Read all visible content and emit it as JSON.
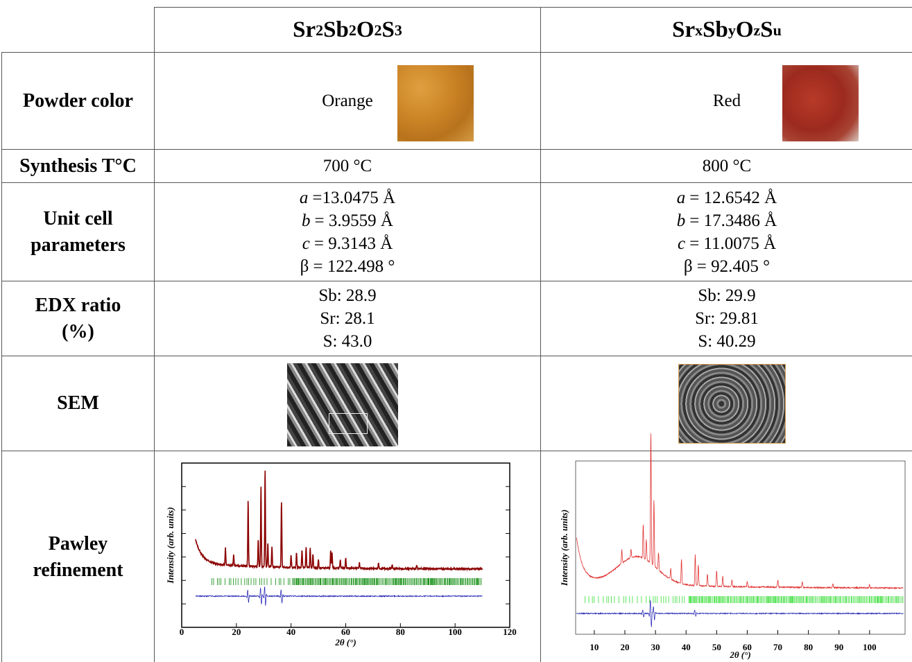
{
  "table": {
    "header": [
      [
        {
          "el": "Sr",
          "sub": "2"
        },
        {
          "el": "Sb",
          "sub": "2"
        },
        {
          "el": "O",
          "sub": "2"
        },
        {
          "el": "S",
          "sub": "3"
        }
      ],
      [
        {
          "el": "Sr",
          "sub": "x"
        },
        {
          "el": "Sb",
          "sub": "y"
        },
        {
          "el": "O",
          "sub": "z"
        },
        {
          "el": "S",
          "sub": "u"
        }
      ]
    ],
    "rows": [
      {
        "label": [
          "Powder color"
        ],
        "cells": [
          {
            "lines": [
              "Orange"
            ]
          },
          {
            "lines": [
              "Red"
            ]
          }
        ]
      },
      {
        "label": [
          "Synthesis T°C"
        ],
        "cells": [
          {
            "lines": [
              "700 °C"
            ]
          },
          {
            "lines": [
              "800 °C"
            ]
          }
        ]
      },
      {
        "label": [
          "Unit cell",
          "parameters"
        ],
        "cells": [
          {
            "lines": [
              {
                "symbol": "a",
                "text": "=13.0475 Å"
              },
              {
                "symbol": "b",
                "text": "= 3.9559 Å"
              },
              {
                "symbol": "c",
                "text": "= 9.3143 Å"
              },
              "β = 122.498 °"
            ]
          },
          {
            "lines": [
              {
                "symbol": "a",
                "text": "= 12.6542 Å"
              },
              {
                "symbol": "b",
                "text": "= 17.3486 Å"
              },
              {
                "symbol": "c",
                "text": "= 11.0075 Å"
              },
              "β = 92.405 °"
            ]
          }
        ]
      },
      {
        "label": [
          "EDX ratio",
          "(%)"
        ],
        "cells": [
          {
            "lines": [
              "Sb: 28.9",
              "Sr: 28.1",
              "S: 43.0"
            ]
          },
          {
            "lines": [
              "Sb: 29.9",
              "Sr: 29.81",
              "S: 40.29"
            ]
          }
        ]
      },
      {
        "label": [
          "SEM"
        ]
      },
      {
        "label": [
          "Pawley",
          "refinement"
        ],
        "cells": [
          {
            "plot": {
              "y_label": "Intensity (arb. units)",
              "x_label": "2θ (°)",
              "xlim": [
                0,
                120
              ],
              "xticks": [
                0,
                20,
                40,
                60,
                80,
                100,
                120
              ],
              "color": "#8b0000"
            }
          },
          {
            "plot": {
              "y_label": "Intensity (arb. units)",
              "x_label": "2θ (°)",
              "xlim": [
                3.9,
                111.6
              ],
              "xticks": [
                10,
                20,
                30,
                40,
                50,
                60,
                70,
                80,
                90,
                100
              ],
              "color": "#e03030"
            }
          }
        ]
      }
    ]
  }
}
